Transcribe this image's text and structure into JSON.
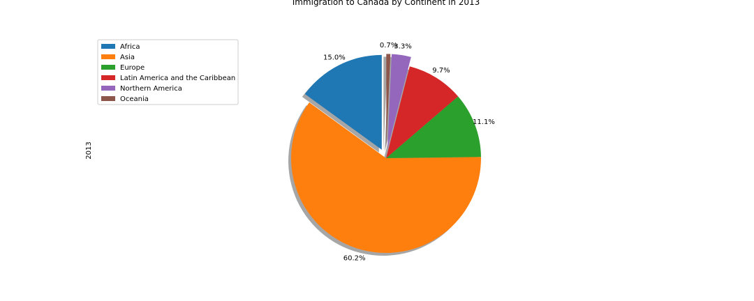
{
  "chart_data": {
    "type": "pie",
    "title": "Immigration to Canada by Continent in 2013",
    "ylabel": "2013",
    "slices": [
      {
        "label": "Africa",
        "pct": 15.0,
        "pct_label": "15.0%",
        "color": "#1f77b4",
        "explode": 0.1
      },
      {
        "label": "Asia",
        "pct": 60.2,
        "pct_label": "60.2%",
        "color": "#ff7f0e",
        "explode": 0
      },
      {
        "label": "Europe",
        "pct": 11.1,
        "pct_label": "11.1%",
        "color": "#2ca02c",
        "explode": 0
      },
      {
        "label": "Latin America and the Caribbean",
        "pct": 9.7,
        "pct_label": "9.7%",
        "color": "#d62728",
        "explode": 0
      },
      {
        "label": "Northern America",
        "pct": 3.3,
        "pct_label": "3.3%",
        "color": "#9467bd",
        "explode": 0.1
      },
      {
        "label": "Oceania",
        "pct": 0.7,
        "pct_label": "0.7%",
        "color": "#8c564b",
        "explode": 0.1
      }
    ],
    "shadow": true,
    "legend_position": "upper-left"
  }
}
